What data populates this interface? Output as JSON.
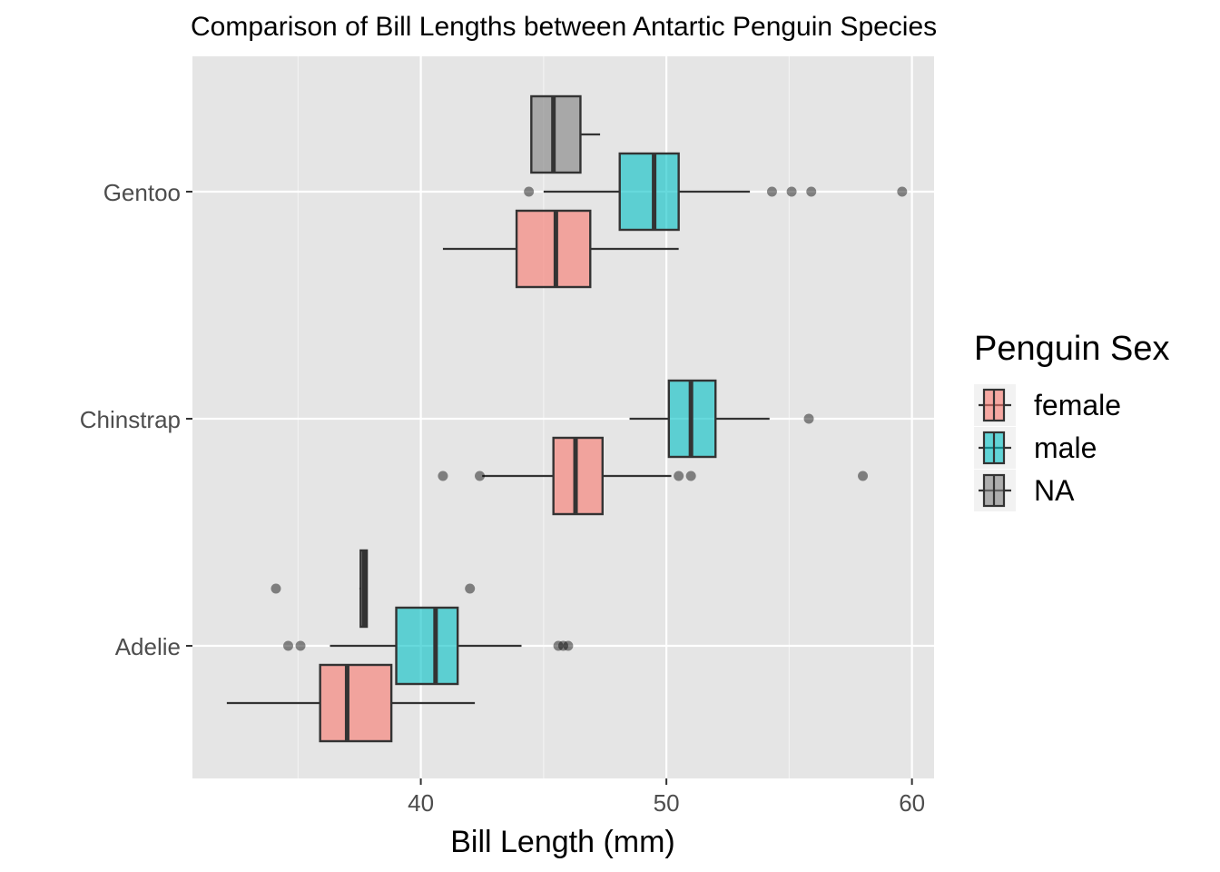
{
  "chart_data": {
    "type": "boxplot",
    "orientation": "horizontal",
    "title": "Comparison of Bill Lengths between Antartic Penguin Species",
    "xlabel": "Bill Length (mm)",
    "ylabel": "",
    "xlim": [
      30.7,
      60.9
    ],
    "xticks": [
      40,
      50,
      60
    ],
    "categories": [
      "Adelie",
      "Chinstrap",
      "Gentoo"
    ],
    "grid": true,
    "legend": {
      "title": "Penguin Sex",
      "position": "right",
      "entries": [
        {
          "label": "female",
          "color": "#F8766D"
        },
        {
          "label": "male",
          "color": "#00BFC4"
        },
        {
          "label": "NA",
          "color": "#7F7F7F"
        }
      ]
    },
    "series": [
      {
        "name": "female",
        "color": "#F8766D",
        "boxes": [
          {
            "category": "Adelie",
            "whisker_low": 32.1,
            "q1": 35.9,
            "median": 37.0,
            "q3": 38.8,
            "whisker_high": 42.2,
            "outliers": []
          },
          {
            "category": "Chinstrap",
            "whisker_low": 42.5,
            "q1": 45.4,
            "median": 46.3,
            "q3": 47.4,
            "whisker_high": 50.2,
            "outliers": [
              40.9,
              42.4,
              50.5,
              51.0,
              58.0
            ]
          },
          {
            "category": "Gentoo",
            "whisker_low": 40.9,
            "q1": 43.9,
            "median": 45.5,
            "q3": 46.9,
            "whisker_high": 50.5,
            "outliers": []
          }
        ]
      },
      {
        "name": "male",
        "color": "#00BFC4",
        "boxes": [
          {
            "category": "Adelie",
            "whisker_low": 36.3,
            "q1": 39.0,
            "median": 40.6,
            "q3": 41.5,
            "whisker_high": 44.1,
            "outliers": [
              34.6,
              35.1,
              45.6,
              45.8,
              46.0
            ]
          },
          {
            "category": "Chinstrap",
            "whisker_low": 48.5,
            "q1": 50.1,
            "median": 51.0,
            "q3": 52.0,
            "whisker_high": 54.2,
            "outliers": [
              55.8
            ]
          },
          {
            "category": "Gentoo",
            "whisker_low": 45.0,
            "q1": 48.1,
            "median": 49.5,
            "q3": 50.5,
            "whisker_high": 53.4,
            "outliers": [
              44.4,
              54.3,
              55.1,
              55.9,
              59.6
            ]
          }
        ]
      },
      {
        "name": "NA",
        "color": "#7F7F7F",
        "boxes": [
          {
            "category": "Adelie",
            "whisker_low": 37.5,
            "q1": 37.55,
            "median": 37.7,
            "q3": 37.8,
            "whisker_high": 37.8,
            "outliers": [
              34.1,
              42.0
            ]
          },
          {
            "category": "Gentoo",
            "whisker_low": 44.5,
            "q1": 44.5,
            "median": 45.4,
            "q3": 46.5,
            "whisker_high": 47.3,
            "outliers": []
          }
        ]
      }
    ]
  }
}
